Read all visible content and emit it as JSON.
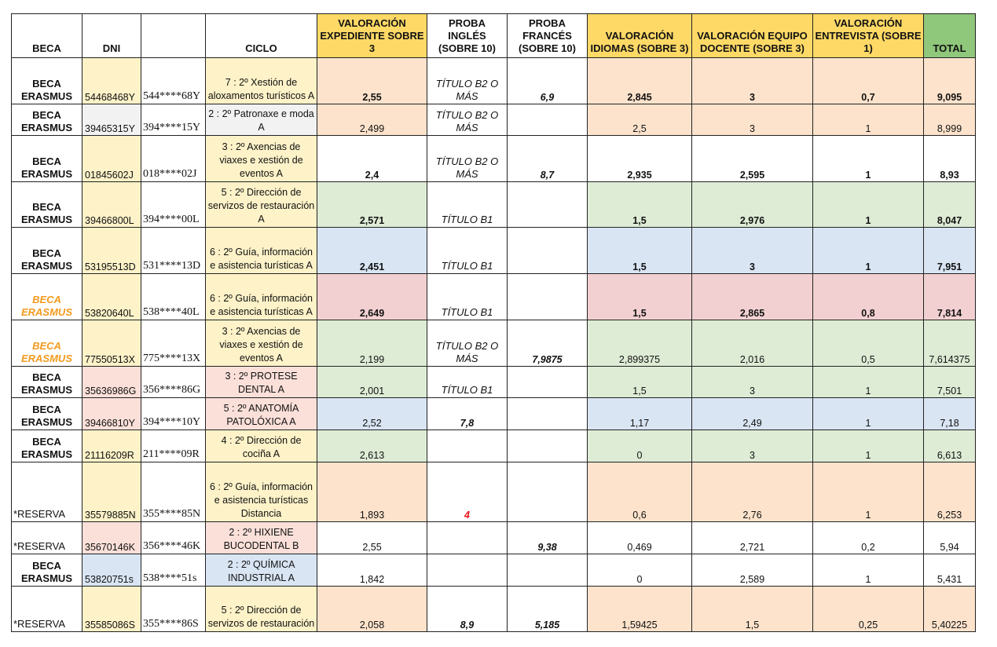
{
  "headers": {
    "beca": "BECA",
    "dni": "DNI",
    "masked": "",
    "ciclo": "CICLO",
    "expediente": "VALORACIÓN EXPEDIENTE SOBRE 3",
    "ingles": "PROBA INGLÉS (SOBRE 10)",
    "frances": "PROBA FRANCÉS (SOBRE 10)",
    "idiomas": "VALORACIÓN IDIOMAS (SOBRE 3)",
    "docente": "VALORACIÓN EQUIPO DOCENTE (SOBRE 3)",
    "entrevista": "VALORACIÓN ENTREVISTA (SOBRE 1)",
    "total": "TOTAL"
  },
  "rows": [
    {
      "beca": "BECA ERASMUS",
      "dni": "54468468Y",
      "masked": "544****68Y",
      "ciclo": "7 : 2º Xestión de aloxamentos turísticos A",
      "expediente": "2,55",
      "ingles": "TÍTULO B2 O MÁS",
      "frances": "6,9",
      "idiomas": "2,845",
      "docente": "3",
      "entrevista": "0,7",
      "total": "9,095"
    },
    {
      "beca": "BECA ERASMUS",
      "dni": "39465315Y",
      "masked": "394****15Y",
      "ciclo": "2 : 2º Patronaxe e moda A",
      "expediente": "2,499",
      "ingles": "TÍTULO B2 O MÁS",
      "frances": "",
      "idiomas": "2,5",
      "docente": "3",
      "entrevista": "1",
      "total": "8,999"
    },
    {
      "beca": "BECA ERASMUS",
      "dni": "01845602J",
      "masked": "018****02J",
      "ciclo": "3 : 2º Axencias de viaxes e xestión de eventos A",
      "expediente": "2,4",
      "ingles": "TÍTULO B2 O MÁS",
      "frances": "8,7",
      "idiomas": "2,935",
      "docente": "2,595",
      "entrevista": "1",
      "total": "8,93"
    },
    {
      "beca": "BECA ERASMUS",
      "dni": "39466800L",
      "masked": "394****00L",
      "ciclo": "5 : 2º Dirección de servizos de restauración A",
      "expediente": "2,571",
      "ingles": "TÍTULO B1",
      "frances": "",
      "idiomas": "1,5",
      "docente": "2,976",
      "entrevista": "1",
      "total": "8,047"
    },
    {
      "beca": "BECA ERASMUS",
      "dni": "53195513D",
      "masked": "531****13D",
      "ciclo": "6 : 2º Guía, información e asistencia turísticas A",
      "expediente": "2,451",
      "ingles": "TÍTULO B1",
      "frances": "",
      "idiomas": "1,5",
      "docente": "3",
      "entrevista": "1",
      "total": "7,951"
    },
    {
      "beca": "BECA ERASMUS",
      "dni": "53820640L",
      "masked": "538****40L",
      "ciclo": "6 : 2º Guía, información e asistencia turísticas A",
      "expediente": "2,649",
      "ingles": "TÍTULO B1",
      "frances": "",
      "idiomas": "1,5",
      "docente": "2,865",
      "entrevista": "0,8",
      "total": "7,814"
    },
    {
      "beca": "BECA ERASMUS",
      "dni": "77550513X",
      "masked": "775****13X",
      "ciclo": "3 : 2º Axencias de viaxes e xestión de eventos A",
      "expediente": "2,199",
      "ingles": "TÍTULO B2 O MÁS",
      "frances": "7,9875",
      "idiomas": "2,899375",
      "docente": "2,016",
      "entrevista": "0,5",
      "total": "7,614375"
    },
    {
      "beca": "BECA ERASMUS",
      "dni": "35636986G",
      "masked": "356****86G",
      "ciclo": "3 : 2º PROTESE DENTAL A",
      "expediente": "2,001",
      "ingles": "TÍTULO B1",
      "frances": "",
      "idiomas": "1,5",
      "docente": "3",
      "entrevista": "1",
      "total": "7,501"
    },
    {
      "beca": "BECA ERASMUS",
      "dni": "39466810Y",
      "masked": "394****10Y",
      "ciclo": "5 : 2º ANATOMÍA PATOLÓXICA A",
      "expediente": "2,52",
      "ingles": "7,8",
      "frances": "",
      "idiomas": "1,17",
      "docente": "2,49",
      "entrevista": "1",
      "total": "7,18"
    },
    {
      "beca": "BECA ERASMUS",
      "dni": "21116209R",
      "masked": "211****09R",
      "ciclo": "4 : 2º Dirección de cociña A",
      "expediente": "2,613",
      "ingles": "",
      "frances": "",
      "idiomas": "0",
      "docente": "3",
      "entrevista": "1",
      "total": "6,613"
    },
    {
      "beca": "*RESERVA",
      "dni": "35579885N",
      "masked": "355****85N",
      "ciclo": "6 : 2º Guía, información e asistencia turísticas Distancia",
      "expediente": "1,893",
      "ingles": "4",
      "frances": "",
      "idiomas": "0,6",
      "docente": "2,76",
      "entrevista": "1",
      "total": "6,253"
    },
    {
      "beca": "*RESERVA",
      "dni": "35670146K",
      "masked": "356****46K",
      "ciclo": "2 : 2º HIXIENE BUCODENTAL B",
      "expediente": "2,55",
      "ingles": "",
      "frances": "9,38",
      "idiomas": "0,469",
      "docente": "2,721",
      "entrevista": "0,2",
      "total": "5,94"
    },
    {
      "beca": "BECA ERASMUS",
      "dni": "53820751s",
      "masked": "538****51s",
      "ciclo": "2 : 2º QUÍMICA INDUSTRIAL A",
      "expediente": "1,842",
      "ingles": "",
      "frances": "",
      "idiomas": "0",
      "docente": "2,589",
      "entrevista": "1",
      "total": "5,431"
    },
    {
      "beca": "*RESERVA",
      "dni": "35585086S",
      "masked": "355****86S",
      "ciclo": "5 : 2º Dirección de servizos de restauración",
      "expediente": "2,058",
      "ingles": "8,9",
      "frances": "5,185",
      "idiomas": "1,59425",
      "docente": "1,5",
      "entrevista": "0,25",
      "total": "5,40225"
    }
  ]
}
